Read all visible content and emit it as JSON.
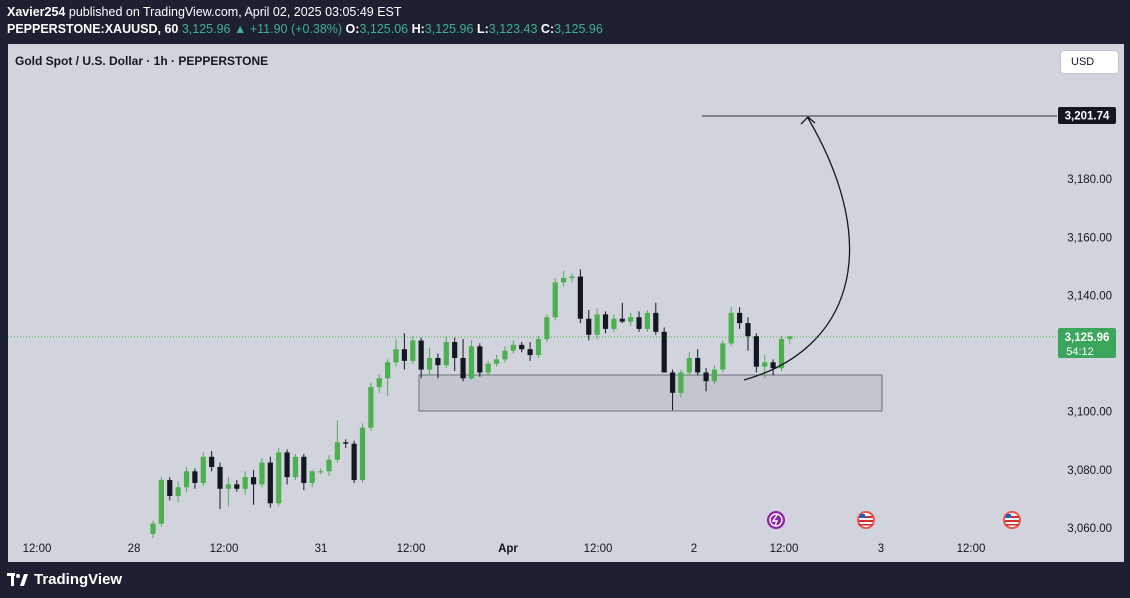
{
  "header": {
    "author": "Xavier254",
    "published_text": "published on TradingView.com, April 02, 2025 03:05:49 EST",
    "symbol": "PEPPERSTONE:XAUUSD, 60",
    "last": "3,125.96",
    "change": "+11.90 (+0.38%)",
    "open_label": "O:",
    "open": "3,125.06",
    "high_label": "H:",
    "high": "3,125.96",
    "low_label": "L:",
    "low": "3,123.43",
    "close_label": "C:",
    "close": "3,125.96"
  },
  "chart_title": "Gold Spot / U.S. Dollar · 1h · PEPPERSTONE",
  "currency_button": "USD",
  "price_axis": {
    "ticks": [
      "3,180.00",
      "3,160.00",
      "3,140.00",
      "3,100.00",
      "3,080.00",
      "3,060.00"
    ],
    "target_label": "3,201.74",
    "current_price_label": "3,125.96",
    "countdown": "54:12"
  },
  "time_axis": {
    "ticks": [
      "12:00",
      "28",
      "12:00",
      "31",
      "12:00",
      "Apr",
      "12:00",
      "2",
      "12:00",
      "3",
      "12:00"
    ]
  },
  "footer": {
    "brand": "TradingView"
  },
  "colors": {
    "up": "#4caf50",
    "down": "#131722",
    "price_tag": "#3ba55c",
    "chart_bg": "#d1d4dc",
    "frame_bg": "#1c2030"
  },
  "icons": [
    "lightning-event-icon",
    "us-flag-icon",
    "us-flag-icon"
  ],
  "chart_data": {
    "type": "candlestick",
    "timeframe": "1h",
    "y_ticks": [
      3060,
      3080,
      3100,
      3140,
      3160,
      3180
    ],
    "ylim": [
      3057,
      3212
    ],
    "target_level": 3201.74,
    "current_price": 3125.96,
    "support_zone": [
      3100,
      3112
    ],
    "grid": false,
    "candles": [
      [
        3058.0,
        3062.5,
        3056.5,
        3061.5
      ],
      [
        3061.5,
        3077.5,
        3060.5,
        3076.5
      ],
      [
        3076.5,
        3077.5,
        3069.5,
        3071.0
      ],
      [
        3071.0,
        3076.0,
        3069.0,
        3074.0
      ],
      [
        3074.0,
        3081.0,
        3072.5,
        3079.5
      ],
      [
        3079.5,
        3080.5,
        3073.5,
        3075.5
      ],
      [
        3075.5,
        3086.0,
        3074.5,
        3084.5
      ],
      [
        3084.5,
        3086.5,
        3079.5,
        3081.0
      ],
      [
        3081.0,
        3082.5,
        3066.5,
        3073.5
      ],
      [
        3073.5,
        3077.5,
        3067.5,
        3075.0
      ],
      [
        3075.0,
        3076.5,
        3072.5,
        3073.5
      ],
      [
        3073.5,
        3079.5,
        3071.5,
        3077.5
      ],
      [
        3077.5,
        3080.0,
        3068.0,
        3075.0
      ],
      [
        3075.0,
        3084.0,
        3074.0,
        3082.5
      ],
      [
        3082.5,
        3084.5,
        3067.0,
        3068.5
      ],
      [
        3068.5,
        3087.5,
        3067.5,
        3086.0
      ],
      [
        3086.0,
        3087.0,
        3075.0,
        3077.5
      ],
      [
        3077.5,
        3085.5,
        3076.5,
        3084.5
      ],
      [
        3084.5,
        3085.5,
        3073.0,
        3075.5
      ],
      [
        3075.5,
        3080.0,
        3074.0,
        3079.5
      ],
      [
        3079.5,
        3080.5,
        3078.5,
        3079.5
      ],
      [
        3079.5,
        3085.0,
        3078.0,
        3083.5
      ],
      [
        3083.5,
        3097.0,
        3082.5,
        3089.5
      ],
      [
        3089.5,
        3090.5,
        3087.5,
        3089.0
      ],
      [
        3089.0,
        3090.0,
        3075.5,
        3076.5
      ],
      [
        3076.5,
        3096.0,
        3075.5,
        3094.5
      ],
      [
        3094.5,
        3110.0,
        3093.5,
        3108.5
      ],
      [
        3108.5,
        3113.0,
        3106.5,
        3111.5
      ],
      [
        3111.5,
        3118.0,
        3105.5,
        3117.0
      ],
      [
        3117.0,
        3125.0,
        3115.5,
        3121.5
      ],
      [
        3121.5,
        3127.0,
        3114.5,
        3117.5
      ],
      [
        3117.5,
        3126.0,
        3116.5,
        3124.5
      ],
      [
        3124.5,
        3125.5,
        3111.5,
        3114.5
      ],
      [
        3114.5,
        3122.0,
        3113.0,
        3118.5
      ],
      [
        3118.5,
        3120.0,
        3111.5,
        3116.0
      ],
      [
        3116.0,
        3126.0,
        3115.0,
        3124.0
      ],
      [
        3124.0,
        3125.5,
        3114.0,
        3118.5
      ],
      [
        3118.5,
        3125.0,
        3110.5,
        3111.5
      ],
      [
        3111.5,
        3124.5,
        3111.0,
        3122.5
      ],
      [
        3122.5,
        3123.5,
        3112.0,
        3113.5
      ],
      [
        3113.5,
        3117.5,
        3112.5,
        3116.5
      ],
      [
        3116.5,
        3119.5,
        3115.5,
        3118.0
      ],
      [
        3118.0,
        3122.5,
        3117.0,
        3121.0
      ],
      [
        3121.0,
        3124.5,
        3120.0,
        3123.0
      ],
      [
        3123.0,
        3124.0,
        3120.5,
        3121.5
      ],
      [
        3121.5,
        3124.0,
        3117.5,
        3119.5
      ],
      [
        3119.5,
        3126.0,
        3118.5,
        3125.0
      ],
      [
        3125.0,
        3133.5,
        3124.0,
        3132.5
      ],
      [
        3132.5,
        3146.0,
        3131.5,
        3144.5
      ],
      [
        3144.5,
        3148.5,
        3143.0,
        3146.0
      ],
      [
        3146.0,
        3147.5,
        3144.5,
        3146.5
      ],
      [
        3146.5,
        3149.0,
        3130.5,
        3132.0
      ],
      [
        3132.0,
        3135.0,
        3124.5,
        3126.5
      ],
      [
        3126.5,
        3135.5,
        3125.0,
        3133.5
      ],
      [
        3133.5,
        3134.5,
        3127.0,
        3128.5
      ],
      [
        3128.5,
        3133.5,
        3127.5,
        3132.0
      ],
      [
        3132.0,
        3137.5,
        3130.5,
        3131.0
      ],
      [
        3131.0,
        3134.0,
        3129.5,
        3132.5
      ],
      [
        3132.5,
        3134.5,
        3127.5,
        3128.5
      ],
      [
        3128.5,
        3135.0,
        3127.5,
        3134.0
      ],
      [
        3134.0,
        3137.5,
        3126.5,
        3127.5
      ],
      [
        3127.5,
        3129.0,
        3113.5,
        3113.5
      ],
      [
        3113.5,
        3114.5,
        3100.5,
        3106.5
      ],
      [
        3106.5,
        3114.5,
        3105.0,
        3113.5
      ],
      [
        3113.5,
        3120.5,
        3112.5,
        3118.5
      ],
      [
        3118.5,
        3121.5,
        3112.5,
        3113.5
      ],
      [
        3113.5,
        3115.0,
        3107.0,
        3110.5
      ],
      [
        3110.5,
        3116.0,
        3109.5,
        3114.5
      ],
      [
        3114.5,
        3124.5,
        3113.5,
        3123.5
      ],
      [
        3123.5,
        3136.0,
        3122.5,
        3134.0
      ],
      [
        3134.0,
        3136.0,
        3128.5,
        3130.5
      ],
      [
        3130.5,
        3132.5,
        3121.0,
        3126.0
      ],
      [
        3126.0,
        3127.0,
        3113.5,
        3115.5
      ],
      [
        3115.5,
        3119.5,
        3111.5,
        3117.0
      ],
      [
        3117.0,
        3118.0,
        3112.5,
        3115.0
      ],
      [
        3115.0,
        3126.0,
        3114.0,
        3125.0
      ],
      [
        3125.06,
        3125.96,
        3123.43,
        3125.96
      ]
    ]
  }
}
